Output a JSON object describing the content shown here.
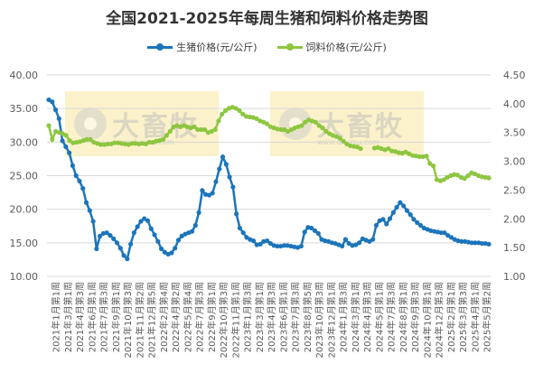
{
  "chart_data": {
    "type": "line",
    "title": "全国2021-2025年每周生猪和饲料价格走势图",
    "series": [
      {
        "name": "生猪价格(元/公斤)",
        "axis": "left",
        "color": "#1b75bb",
        "values": [
          36.3,
          36.0,
          34.8,
          33.5,
          30.2,
          29.3,
          28.4,
          26.5,
          25.0,
          24.2,
          23.1,
          21.0,
          19.8,
          18.2,
          14.1,
          16.0,
          16.4,
          16.5,
          16.1,
          15.6,
          15.0,
          14.2,
          13.1,
          12.6,
          14.8,
          16.5,
          17.4,
          18.2,
          18.6,
          18.3,
          17.1,
          16.2,
          15.2,
          14.1,
          13.6,
          13.3,
          13.5,
          14.2,
          15.4,
          16.0,
          16.3,
          16.5,
          16.7,
          17.6,
          19.5,
          22.8,
          22.2,
          22.1,
          22.4,
          24.1,
          26.0,
          27.8,
          26.7,
          24.8,
          23.3,
          19.3,
          17.2,
          16.5,
          15.8,
          15.5,
          15.3,
          14.7,
          14.8,
          15.2,
          15.3,
          14.9,
          14.6,
          14.5,
          14.5,
          14.6,
          14.6,
          14.5,
          14.4,
          14.3,
          14.5,
          16.6,
          17.3,
          17.2,
          16.8,
          16.4,
          15.5,
          15.3,
          15.2,
          15.0,
          14.9,
          14.7,
          14.5,
          15.5,
          14.9,
          14.6,
          14.7,
          15.0,
          15.6,
          15.4,
          15.2,
          15.5,
          17.6,
          18.3,
          18.5,
          17.8,
          18.6,
          19.5,
          20.3,
          21.0,
          20.5,
          19.8,
          19.2,
          18.5,
          18.0,
          17.6,
          17.2,
          17.0,
          16.8,
          16.7,
          16.6,
          16.5,
          16.5,
          16.1,
          15.8,
          15.5,
          15.3,
          15.2,
          15.2,
          15.1,
          15.0,
          15.0,
          15.0,
          14.9,
          14.9,
          14.8
        ]
      },
      {
        "name": "饲料价格(元/公斤)",
        "axis": "right",
        "color": "#8dc63f",
        "values": [
          3.62,
          3.38,
          3.52,
          3.5,
          3.48,
          3.45,
          3.36,
          3.32,
          3.33,
          3.34,
          3.36,
          3.38,
          3.38,
          3.33,
          3.31,
          3.29,
          3.29,
          3.3,
          3.3,
          3.32,
          3.32,
          3.31,
          3.3,
          3.29,
          3.31,
          3.31,
          3.3,
          3.31,
          3.3,
          3.33,
          3.33,
          3.35,
          3.36,
          3.38,
          3.45,
          3.52,
          3.6,
          3.62,
          3.6,
          3.62,
          3.6,
          3.58,
          3.6,
          3.55,
          3.55,
          3.55,
          3.5,
          3.52,
          3.55,
          3.7,
          3.82,
          3.88,
          3.92,
          3.94,
          3.92,
          3.88,
          3.82,
          3.78,
          3.77,
          3.76,
          3.74,
          3.7,
          3.68,
          3.65,
          3.6,
          3.58,
          3.56,
          3.55,
          3.55,
          3.52,
          3.55,
          3.58,
          3.6,
          3.62,
          3.68,
          3.72,
          3.7,
          3.68,
          3.62,
          3.58,
          3.52,
          3.48,
          3.45,
          3.43,
          3.4,
          3.35,
          3.3,
          3.27,
          3.26,
          3.25,
          3.22,
          null,
          null,
          null,
          3.23,
          3.24,
          3.22,
          3.2,
          3.22,
          3.18,
          3.17,
          3.15,
          3.14,
          3.16,
          3.13,
          3.1,
          3.09,
          3.08,
          3.08,
          3.09,
          2.96,
          2.92,
          2.68,
          2.66,
          2.68,
          2.72,
          2.75,
          2.77,
          2.76,
          2.72,
          2.7,
          2.75,
          2.8,
          2.78,
          2.75,
          2.73,
          2.72,
          2.71
        ]
      }
    ],
    "y_left": {
      "min": 10,
      "max": 40,
      "step": 5,
      "ticks": [
        "10.00",
        "15.00",
        "20.00",
        "25.00",
        "30.00",
        "35.00",
        "40.00"
      ]
    },
    "y_right": {
      "min": 1.0,
      "max": 4.5,
      "step": 0.5,
      "ticks": [
        "1.00",
        "1.50",
        "2.00",
        "2.50",
        "3.00",
        "3.50",
        "4.00",
        "4.50"
      ]
    },
    "x_labels": [
      "2021年1月第1周",
      "2021年3月第1周",
      "2021年4月第3周",
      "2021年6月第1周",
      "2021年7月第3周",
      "2021年9月第1周",
      "2021年10月第3周",
      "2021年11月第2周",
      "2021年12月第5周",
      "2022年2月第4周",
      "2022年4月第2周",
      "2022年5月第4周",
      "2022年7月第3周",
      "2022年9月第1周",
      "2022年10月第3周",
      "2022年11月第1周",
      "2023年1月第3周",
      "2023年3月第1周",
      "2023年4月第3周",
      "2023年6月第1周",
      "2023年7月第3周",
      "2023年8月第5周",
      "2023年10月第3周",
      "2023年12月第1周",
      "2024年1月第3周",
      "2024年3月第1周",
      "2024年4月第3周",
      "2024年5月第1周",
      "2024年7月第3周",
      "2024年8月第1周",
      "2024年9月第3周",
      "2024年10月第1周",
      "2024年12月第3周",
      "2025年2月第1周",
      "2025年3月第3周",
      "2025年4月第1周",
      "2025年5月第2周"
    ],
    "grid": true,
    "legend_position": "top"
  },
  "watermark": {
    "text": "大畜牧",
    "url": "www.dxumu.com"
  },
  "colors": {
    "pig": "#1b75bb",
    "feed": "#8dc63f",
    "grid": "#d9d9d9",
    "axis_text": "#595959",
    "watermark_bg": "#f7e8a0"
  }
}
